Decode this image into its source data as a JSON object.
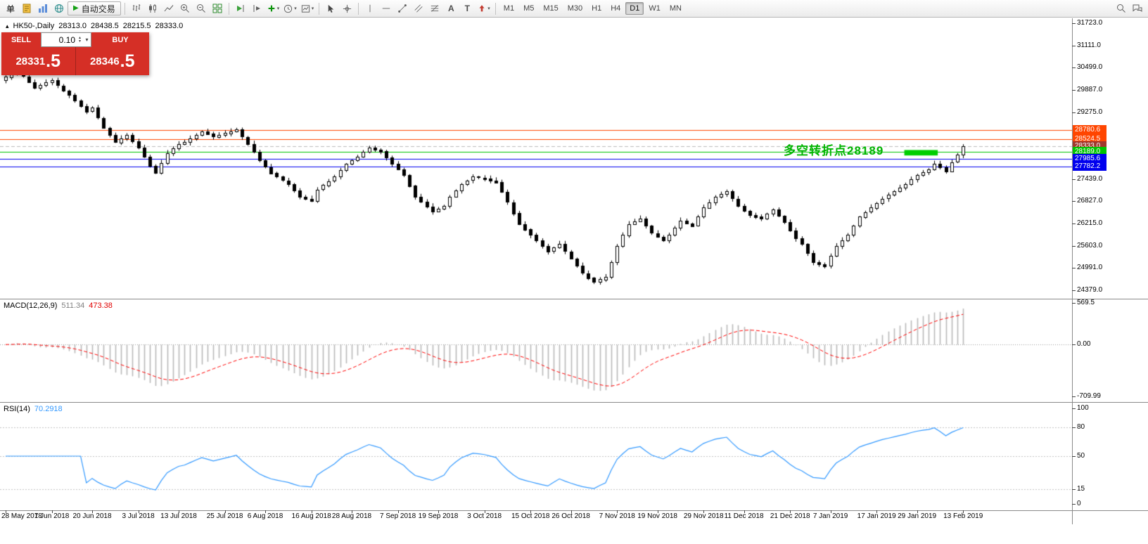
{
  "icons": {
    "collapse": "▴",
    "caret": "▾",
    "play": "▶",
    "spin_up": "▴",
    "spin_down": "▾",
    "text_tool": "A",
    "label_tool": "T"
  },
  "toolbar": {
    "menu_char": "单",
    "autotrading_label": "自动交易",
    "timeframes": [
      "M1",
      "M5",
      "M15",
      "M30",
      "H1",
      "H4",
      "D1",
      "W1",
      "MN"
    ],
    "active_timeframe": "D1"
  },
  "chart_header": {
    "symbol_period": "HK50-,Daily",
    "open": "28313.0",
    "high": "28438.5",
    "low": "28215.5",
    "close": "28333.0"
  },
  "trade_panel": {
    "sell_label": "SELL",
    "buy_label": "BUY",
    "volume": "0.10",
    "color": "#d52f26",
    "sell_price_main": "28331",
    "sell_price_big": ".5",
    "buy_price_main": "28346",
    "buy_price_big": ".5"
  },
  "annotation": {
    "text": "多空转折点28189",
    "color": "#00b400"
  },
  "main_chart": {
    "type": "candlestick",
    "price_min": 24146,
    "price_max": 31858,
    "price_ticks": [
      "31723.0",
      "31111.0",
      "30499.0",
      "29887.0",
      "29275.0",
      "27439.0",
      "26827.0",
      "26215.0",
      "25603.0",
      "24991.0",
      "24379.0"
    ],
    "lines": [
      {
        "price": 28780.6,
        "label": "28780.6",
        "color": "#ff4500",
        "tag": "#ff4500",
        "dashed": false
      },
      {
        "price": 28524.5,
        "label": "28524.5",
        "color": "#ff4500",
        "tag": "#ff4500",
        "dashed": false
      },
      {
        "price": 28333.0,
        "label": "28333.0",
        "color": "#bbbbbb",
        "tag": "#a0382e",
        "dashed": true
      },
      {
        "price": 28189.0,
        "label": "28189.0",
        "color": "#00c400",
        "tag": "#00c400",
        "dashed": false
      },
      {
        "price": 27985.6,
        "label": "27985.6",
        "color": "#0000ee",
        "tag": "#0000ee",
        "dashed": false
      },
      {
        "price": 27782.2,
        "label": "27782.2",
        "color": "#0000ee",
        "tag": "#0000ee",
        "dashed": false
      }
    ],
    "highlight_box": {
      "i1": 155.8,
      "i2": 161.6,
      "p1": 28235,
      "p2": 28085,
      "color": "#00cf00"
    },
    "first_open": 30150,
    "closes": [
      30250,
      30340,
      30420,
      30260,
      30100,
      29950,
      30020,
      30090,
      30150,
      30010,
      29870,
      29750,
      29600,
      29450,
      29300,
      29400,
      29120,
      28850,
      28650,
      28450,
      28560,
      28650,
      28470,
      28300,
      28050,
      27800,
      27600,
      27880,
      28150,
      28280,
      28400,
      28450,
      28550,
      28650,
      28750,
      28680,
      28600,
      28650,
      28700,
      28750,
      28800,
      28600,
      28400,
      28180,
      27950,
      27770,
      27600,
      27500,
      27400,
      27300,
      27120,
      26950,
      26900,
      26850,
      27150,
      27270,
      27380,
      27500,
      27680,
      27850,
      27950,
      28050,
      28180,
      28300,
      28250,
      28200,
      28030,
      27850,
      27700,
      27550,
      27250,
      26950,
      26820,
      26680,
      26550,
      26620,
      26700,
      26950,
      27130,
      27300,
      27400,
      27500,
      27480,
      27450,
      27400,
      27350,
      27080,
      26800,
      26500,
      26200,
      26050,
      25900,
      25750,
      25600,
      25450,
      25550,
      25650,
      25450,
      25250,
      25050,
      24850,
      24720,
      24600,
      24680,
      24750,
      25150,
      25600,
      25900,
      26200,
      26280,
      26350,
      26150,
      25950,
      25850,
      25750,
      25900,
      26100,
      26300,
      26220,
      26150,
      26400,
      26650,
      26800,
      26950,
      27030,
      27100,
      26900,
      26700,
      26570,
      26450,
      26400,
      26350,
      26480,
      26600,
      26420,
      26250,
      26020,
      25800,
      25650,
      25400,
      25150,
      25100,
      25050,
      25330,
      25600,
      25750,
      25900,
      26150,
      26400,
      26530,
      26650,
      26780,
      26900,
      27000,
      27100,
      27200,
      27300,
      27430,
      27550,
      27630,
      27700,
      27850,
      27760,
      27650,
      27900,
      28100,
      28333
    ]
  },
  "macd": {
    "label": "MACD(12,26,9)",
    "value_main": "511.34",
    "value_signal": "473.38",
    "range": [
      -790,
      630
    ],
    "axis": [
      {
        "v": 569.5,
        "label": "569.5"
      },
      {
        "v": 0,
        "label": "0.00"
      },
      {
        "v": -709.99,
        "label": "-709.99"
      }
    ],
    "colors": {
      "hist": "#b9b9b9",
      "signal": "#ff0000"
    }
  },
  "rsi": {
    "label": "RSI(14)",
    "value": "70.2918",
    "range": [
      -7,
      107
    ],
    "color": "#3399ff",
    "levels": [
      {
        "v": 100,
        "label": "100"
      },
      {
        "v": 80,
        "label": "80"
      },
      {
        "v": 50,
        "label": "50"
      },
      {
        "v": 15,
        "label": "15"
      },
      {
        "v": 0,
        "label": "0"
      }
    ],
    "dashed_levels": [
      80,
      50,
      15
    ]
  },
  "dates": {
    "labels": [
      "28 May 2018",
      "7 Jun 2018",
      "20 Jun 2018",
      "3 Jul 2018",
      "13 Jul 2018",
      "25 Jul 2018",
      "6 Aug 2018",
      "16 Aug 2018",
      "28 Aug 2018",
      "7 Sep 2018",
      "19 Sep 2018",
      "3 Oct 2018",
      "15 Oct 2018",
      "26 Oct 2018",
      "7 Nov 2018",
      "19 Nov 2018",
      "29 Nov 2018",
      "11 Dec 2018",
      "21 Dec 2018",
      "7 Jan 2019",
      "17 Jan 2019",
      "29 Jan 2019",
      "13 Feb 2019"
    ],
    "tick_indices": [
      0,
      8,
      15,
      23,
      30,
      38,
      45,
      53,
      60,
      68,
      75,
      83,
      91,
      98,
      106,
      113,
      121,
      128,
      136,
      143,
      151,
      158,
      166
    ]
  }
}
